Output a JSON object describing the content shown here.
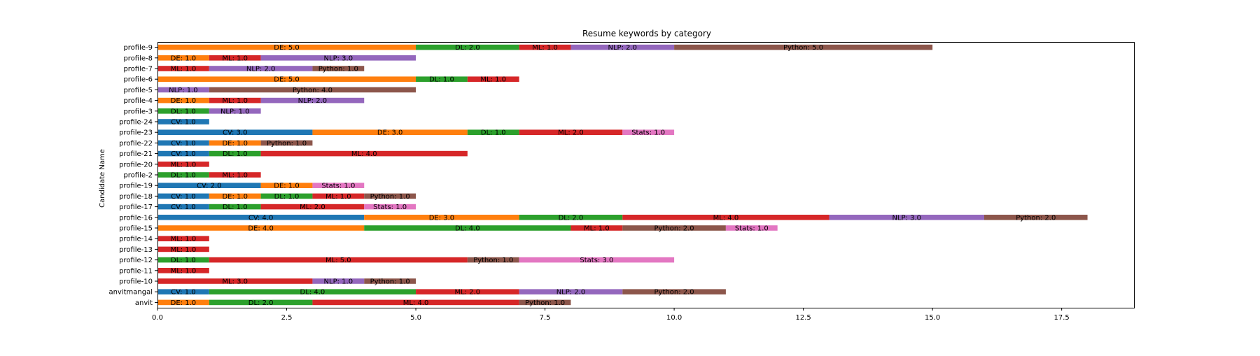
{
  "chart_data": {
    "type": "bar",
    "orientation": "horizontal",
    "stacked": true,
    "title": "Resume keywords by category",
    "xlabel": "",
    "ylabel": "Candidate Name",
    "xlim": [
      0,
      18.9
    ],
    "xticks": [
      "0.0",
      "2.5",
      "5.0",
      "7.5",
      "10.0",
      "12.5",
      "15.0",
      "17.5"
    ],
    "grid": false,
    "legend": "none",
    "categories": [
      "anvit",
      "anvitmangal",
      "profile-10",
      "profile-11",
      "profile-12",
      "profile-13",
      "profile-14",
      "profile-15",
      "profile-16",
      "profile-17",
      "profile-18",
      "profile-19",
      "profile-2",
      "profile-20",
      "profile-21",
      "profile-22",
      "profile-23",
      "profile-24",
      "profile-3",
      "profile-4",
      "profile-5",
      "profile-6",
      "profile-7",
      "profile-8",
      "profile-9"
    ],
    "series": [
      {
        "name": "CV",
        "color": "#1f77b4",
        "values": [
          0,
          1,
          0,
          0,
          0,
          0,
          0,
          0,
          4,
          1,
          1,
          2,
          0,
          0,
          1,
          1,
          3,
          1,
          0,
          0,
          0,
          0,
          0,
          0,
          0
        ]
      },
      {
        "name": "DE",
        "color": "#ff7f0e",
        "values": [
          1,
          0,
          0,
          0,
          0,
          0,
          0,
          4,
          3,
          0,
          1,
          1,
          0,
          0,
          0,
          1,
          3,
          0,
          0,
          1,
          0,
          5,
          0,
          1,
          5
        ]
      },
      {
        "name": "DL",
        "color": "#2ca02c",
        "values": [
          2,
          4,
          0,
          0,
          1,
          0,
          0,
          4,
          2,
          1,
          1,
          0,
          1,
          0,
          1,
          0,
          1,
          0,
          1,
          0,
          0,
          1,
          0,
          0,
          2
        ]
      },
      {
        "name": "ML",
        "color": "#d62728",
        "values": [
          4,
          2,
          3,
          1,
          5,
          1,
          1,
          1,
          4,
          2,
          1,
          0,
          1,
          1,
          4,
          0,
          2,
          0,
          0,
          1,
          0,
          1,
          1,
          1,
          1
        ]
      },
      {
        "name": "NLP",
        "color": "#9467bd",
        "values": [
          0,
          2,
          1,
          0,
          0,
          0,
          0,
          0,
          3,
          0,
          0,
          0,
          0,
          0,
          0,
          0,
          0,
          0,
          1,
          2,
          1,
          0,
          2,
          3,
          2
        ]
      },
      {
        "name": "Python",
        "color": "#8c564b",
        "values": [
          1,
          2,
          1,
          0,
          1,
          0,
          0,
          2,
          2,
          0,
          1,
          0,
          0,
          0,
          0,
          1,
          0,
          0,
          0,
          0,
          4,
          0,
          1,
          0,
          5
        ]
      },
      {
        "name": "Stats",
        "color": "#e377c2",
        "values": [
          0,
          0,
          0,
          0,
          3,
          0,
          0,
          1,
          0,
          1,
          0,
          1,
          0,
          0,
          0,
          0,
          1,
          0,
          0,
          0,
          0,
          0,
          0,
          0,
          0
        ]
      }
    ]
  }
}
